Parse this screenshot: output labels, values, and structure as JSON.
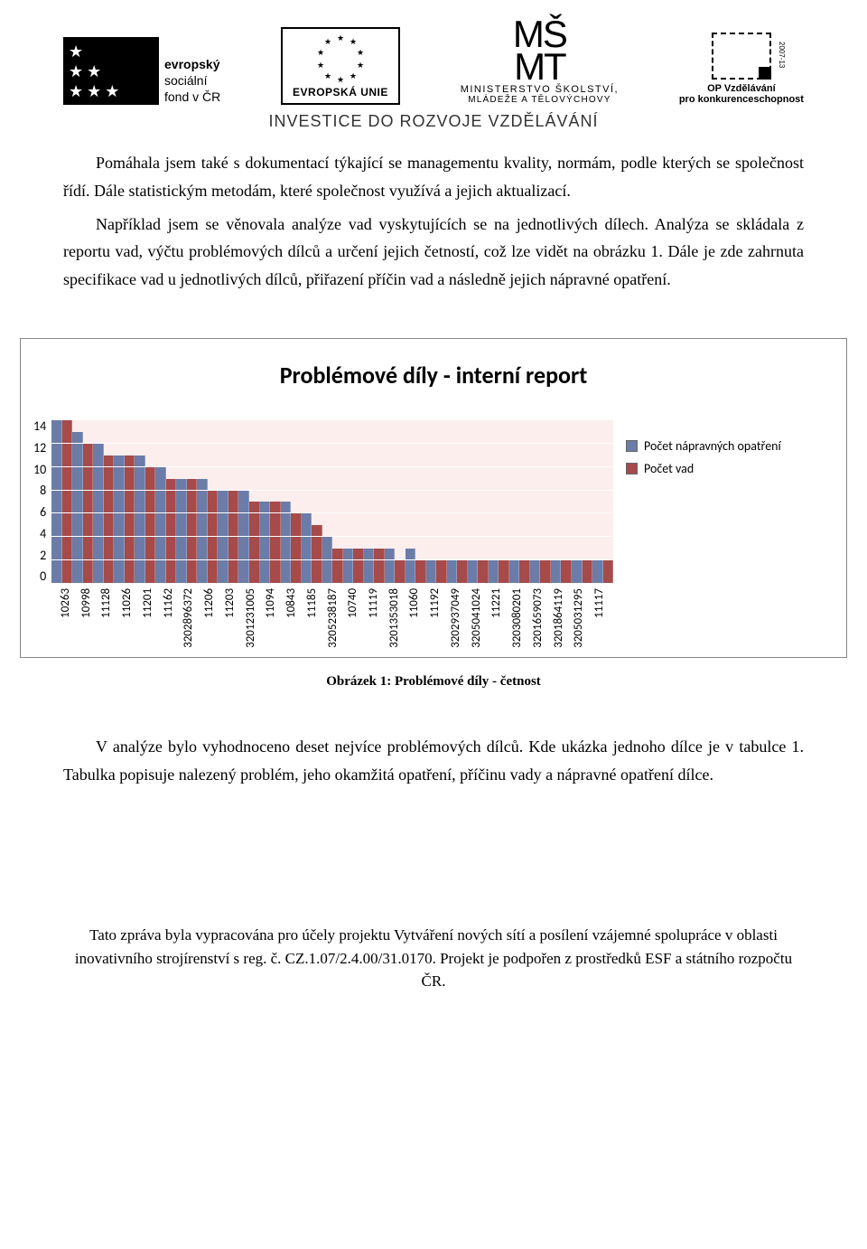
{
  "header": {
    "esf": {
      "line1": "evropský",
      "line2": "sociální",
      "line3": "fond v ČR"
    },
    "eu": {
      "label": "EVROPSKÁ UNIE"
    },
    "msmt": {
      "logo_top": "MŠ",
      "logo_bot": "MT",
      "line1": "MINISTERSTVO ŠKOLSTVÍ,",
      "line2": "MLÁDEŽE A TĚLOVÝCHOVY"
    },
    "op": {
      "year": "2007-13",
      "line1": "OP Vzdělávání",
      "line2": "pro konkurenceschopnost"
    },
    "tagline": "INVESTICE DO ROZVOJE VZDĚLÁVÁNÍ"
  },
  "paragraphs": {
    "p1": "Pomáhala jsem také s dokumentací týkající se managementu kvality, normám, podle kterých se společnost řídí. Dále statistickým metodám, které společnost využívá a jejich aktualizací.",
    "p2": "Například jsem se věnovala analýze vad vyskytujících se na jednotlivých dílech. Analýza se skládala z reportu vad, výčtu problémových dílců a určení jejich četností, což lze vidět na obrázku 1. Dále je zde zahrnuta specifikace vad u jednotlivých dílců, přiřazení příčin vad a následně jejich nápravné opatření.",
    "caption": "Obrázek 1: Problémové díly - četnost",
    "p3": "V analýze bylo vyhodnoceno deset nejvíce problémových dílců. Kde ukázka jednoho dílce je v tabulce 1. Tabulka popisuje nalezený problém, jeho okamžitá opatření, příčinu vady a nápravné opatření dílce."
  },
  "chart": {
    "type": "bar",
    "title": "Problémové díly - interní report",
    "background_color": "#fdeeee",
    "grid_color": "#ffffff",
    "ylim": [
      0,
      14
    ],
    "ytick_step": 2,
    "yticks": [
      "14",
      "12",
      "10",
      "8",
      "6",
      "4",
      "2",
      "0"
    ],
    "legend": [
      {
        "label": "Počet nápravných opatření",
        "color": "#6b7ca8"
      },
      {
        "label": "Počet vad",
        "color": "#a64a4a"
      }
    ],
    "series_colors": {
      "napravna": "#6b7ca8",
      "vad": "#a64a4a"
    },
    "categories": [
      "10263",
      "10998",
      "11128",
      "11026",
      "11201",
      "11162",
      "3202896372",
      "11206",
      "11203",
      "3201231005",
      "11094",
      "10843",
      "11185",
      "3205238187",
      "10740",
      "11119",
      "3201353018",
      "11060",
      "11192",
      "3202937049",
      "3205041024",
      "11221",
      "3203080201",
      "3201659073",
      "3201864119",
      "3205031295",
      "11117"
    ],
    "values_napravna": [
      14,
      13,
      12,
      11,
      11,
      10,
      9,
      9,
      8,
      8,
      7,
      7,
      6,
      4,
      3,
      3,
      3,
      3,
      2,
      2,
      2,
      2,
      2,
      2,
      2,
      2,
      2
    ],
    "values_vad": [
      14,
      12,
      11,
      11,
      10,
      9,
      9,
      8,
      8,
      7,
      7,
      6,
      5,
      3,
      3,
      3,
      2,
      2,
      2,
      2,
      2,
      2,
      2,
      2,
      2,
      2,
      2
    ],
    "title_fontsize": 26,
    "label_fontsize": 14
  },
  "footer": {
    "text": "Tato zpráva byla vypracována pro účely projektu Vytváření nových sítí a posílení vzájemné spolupráce v oblasti inovativního strojírenství s reg. č. CZ.1.07/2.4.00/31.0170. Projekt je podpořen z prostředků ESF a státního rozpočtu ČR."
  }
}
